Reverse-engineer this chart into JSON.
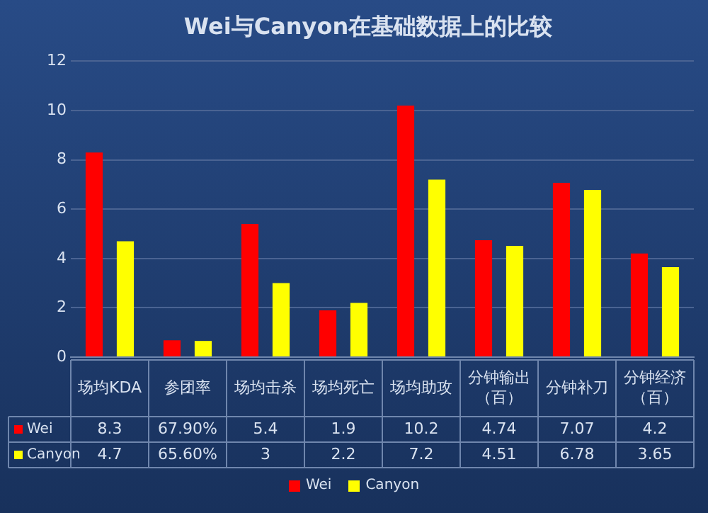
{
  "chart_data": {
    "type": "bar",
    "title": "Wei与Canyon在基础数据上的比较",
    "categories": [
      "场均KDA",
      "参团率",
      "场均击杀",
      "场均死亡",
      "场均助攻",
      "分钟输出（百）",
      "分钟补刀",
      "分钟经济（百）"
    ],
    "series": [
      {
        "name": "Wei",
        "color": "#ff0000",
        "values": [
          8.3,
          0.679,
          5.4,
          1.9,
          10.2,
          4.74,
          7.07,
          4.2
        ],
        "value_labels": [
          "8.3",
          "67.90%",
          "5.4",
          "1.9",
          "10.2",
          "4.74",
          "7.07",
          "4.2"
        ]
      },
      {
        "name": "Canyon",
        "color": "#ffff00",
        "values": [
          4.7,
          0.656,
          3,
          2.2,
          7.2,
          4.51,
          6.78,
          3.65
        ],
        "value_labels": [
          "4.7",
          "65.60%",
          "3",
          "2.2",
          "7.2",
          "4.51",
          "6.78",
          "3.65"
        ]
      }
    ],
    "ylim": [
      0,
      12
    ],
    "yticks": [
      0,
      2,
      4,
      6,
      8,
      10,
      12
    ],
    "grid": "y",
    "legend": "bottom",
    "data_labels": true
  }
}
